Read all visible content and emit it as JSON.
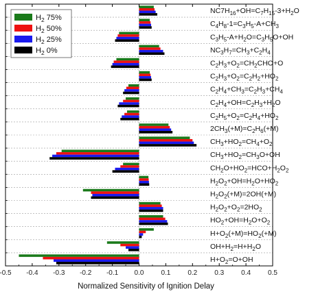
{
  "chart_data": {
    "type": "bar",
    "orientation": "horizontal",
    "xlabel": "Normalized Sensitivity of Ignition Delay",
    "xlim": [
      -0.5,
      0.5
    ],
    "xticks": [
      "-0.5",
      "-0.4",
      "-0.3",
      "-0.2",
      "-0.1",
      "0.0",
      "0.1",
      "0.2",
      "0.3",
      "0.4",
      "0.5"
    ],
    "legend_position": "top-left",
    "categories": [
      "NC7H16+OH=C7H15-3+H2O",
      "C4H8-1=C3H5-A+CH3",
      "C3H5-A+H2O=C3H5O+OH",
      "NC3H7=CH3+C2H4",
      "C2H3+O2=CH2CHO+O",
      "C2H3+O2=C2H2+HO2",
      "C2H4+CH3=C2H3+CH4",
      "C2H4+OH=C2H3+H2O",
      "C2H5+O2=C2H4+HO2",
      "2CH3(+M)=C2H6(+M)",
      "CH3+HO2=CH4+O2",
      "CH3+HO2=CH3O+OH",
      "CH2O+HO2=HCO+H2O2",
      "H2O2+OH=H2O+HO2",
      "H2O2(+M)=2OH(+M)",
      "H2O2+O2=2HO2",
      "HO2+OH=H2O+O2",
      "H+O2(+M)=HO2(+M)",
      "OH+H2=H+H2O",
      "H+O2=O+OH"
    ],
    "category_labels_html": [
      "NC7H<sub>16</sub>+OH=C<sub>7</sub>H<sub>15</sub>-3+H<sub>2</sub>O",
      "C<sub>4</sub>H<sub>8</sub>-1=C<sub>3</sub>H<sub>5</sub>-A+CH<sub>3</sub>",
      "C<sub>3</sub>H<sub>5</sub>-A+H<sub>2</sub>O=C<sub>3</sub>H<sub>5</sub>O+OH",
      "NC<sub>3</sub>H<sub>7</sub>=CH<sub>3</sub>+C<sub>2</sub>H<sub>4</sub>",
      "C<sub>2</sub>H<sub>3</sub>+O<sub>2</sub>=CH<sub>2</sub>CHO+O",
      "C<sub>2</sub>H<sub>3</sub>+O<sub>2</sub>=C<sub>2</sub>H<sub>2</sub>+HO<sub>2</sub>",
      "C<sub>2</sub>H<sub>4</sub>+CH<sub>3</sub>=C<sub>2</sub>H<sub>3</sub>+CH<sub>4</sub>",
      "C<sub>2</sub>H<sub>4</sub>+OH=C<sub>2</sub>H<sub>3</sub>+H<sub>2</sub>O",
      "C<sub>2</sub>H<sub>5</sub>+O<sub>2</sub>=C<sub>2</sub>H<sub>4</sub>+HO<sub>2</sub>",
      "2CH<sub>3</sub>(+M)=C<sub>2</sub>H<sub>6</sub>(+M)",
      "CH<sub>3</sub>+HO<sub>2</sub>=CH<sub>4</sub>+O<sub>2</sub>",
      "CH<sub>3</sub>+HO<sub>2</sub>=CH<sub>3</sub>O+OH",
      "CH<sub>2</sub>O+HO<sub>2</sub>=HCO+H<sub>2</sub>O<sub>2</sub>",
      "H<sub>2</sub>O<sub>2</sub>+OH=H<sub>2</sub>O+HO<sub>2</sub>",
      "H<sub>2</sub>O<sub>2</sub>(+M)=2OH(+M)",
      "H<sub>2</sub>O<sub>2</sub>+O<sub>2</sub>=2HO<sub>2</sub>",
      "HO<sub>2</sub>+OH=H<sub>2</sub>O+O<sub>2</sub>",
      "H+O<sub>2</sub>(+M)=HO<sub>2</sub>(+M)",
      "OH+H<sub>2</sub>=H+H<sub>2</sub>O",
      "H+O<sub>2</sub>=O+OH"
    ],
    "series": [
      {
        "name": "H2 75%",
        "name_html": "H<sub>2</sub> 75%",
        "color": "#1a7a1a",
        "values": [
          0.055,
          0.04,
          -0.075,
          0.075,
          -0.085,
          0.04,
          -0.04,
          -0.05,
          -0.045,
          0.11,
          0.19,
          -0.29,
          -0.06,
          0.035,
          -0.21,
          0.08,
          0.09,
          0.055,
          -0.12,
          -0.45
        ]
      },
      {
        "name": "H2 50%",
        "name_html": "H<sub>2</sub> 50%",
        "color": "#ee1111",
        "values": [
          0.058,
          0.043,
          -0.08,
          0.08,
          -0.095,
          0.043,
          -0.048,
          -0.06,
          -0.055,
          0.115,
          0.2,
          -0.31,
          -0.07,
          0.036,
          -0.18,
          0.085,
          0.098,
          0.025,
          -0.07,
          -0.36
        ]
      },
      {
        "name": "H2 25%",
        "name_html": "H<sub>2</sub> 25%",
        "color": "#1a1aee",
        "values": [
          0.062,
          0.045,
          -0.085,
          0.09,
          -0.1,
          0.045,
          -0.055,
          -0.075,
          -0.065,
          0.12,
          0.205,
          -0.325,
          -0.09,
          0.037,
          -0.175,
          0.09,
          0.105,
          0.015,
          -0.05,
          -0.32
        ]
      },
      {
        "name": "H2 0%",
        "name_html": "H<sub>2</sub> 0%",
        "color": "#000000",
        "values": [
          0.068,
          0.047,
          -0.09,
          0.095,
          -0.105,
          0.047,
          -0.06,
          -0.08,
          -0.07,
          0.125,
          0.215,
          -0.335,
          -0.1,
          0.038,
          -0.18,
          0.09,
          0.108,
          0.01,
          -0.04,
          -0.31
        ]
      }
    ]
  }
}
